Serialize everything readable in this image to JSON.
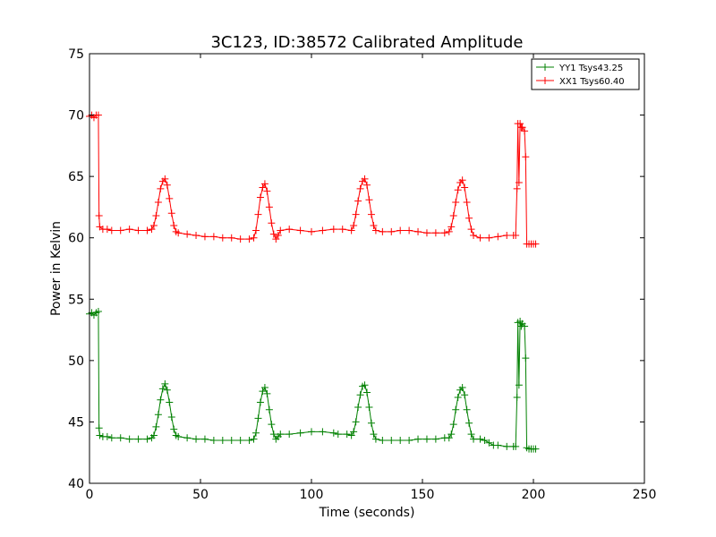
{
  "chart_data": {
    "type": "line",
    "title": "3C123, ID:38572 Calibrated Amplitude",
    "xlabel": "Time (seconds)",
    "ylabel": "Power in Kelvin",
    "xlim": [
      0,
      250
    ],
    "ylim": [
      40,
      75
    ],
    "xticks": [
      0,
      50,
      100,
      150,
      200,
      250
    ],
    "yticks": [
      40,
      45,
      50,
      55,
      60,
      65,
      70,
      75
    ],
    "xtick_labels": [
      "0",
      "50",
      "100",
      "150",
      "200",
      "250"
    ],
    "ytick_labels": [
      "40",
      "45",
      "50",
      "55",
      "60",
      "65",
      "70",
      "75"
    ],
    "grid": false,
    "legend_position": "top-right",
    "marker": "plus",
    "series": [
      {
        "name": "YY1 Tsys43.25",
        "color": "#008000",
        "points": [
          [
            0,
            53.8
          ],
          [
            1,
            53.9
          ],
          [
            2,
            53.7
          ],
          [
            3,
            53.9
          ],
          [
            4,
            54.0
          ],
          [
            4.3,
            44.5
          ],
          [
            4.6,
            43.9
          ],
          [
            6,
            43.8
          ],
          [
            8,
            43.8
          ],
          [
            10,
            43.7
          ],
          [
            14,
            43.7
          ],
          [
            18,
            43.6
          ],
          [
            22,
            43.6
          ],
          [
            26,
            43.6
          ],
          [
            28,
            43.7
          ],
          [
            29,
            43.9
          ],
          [
            30,
            44.6
          ],
          [
            31,
            45.6
          ],
          [
            32,
            46.8
          ],
          [
            33,
            47.7
          ],
          [
            34,
            48.1
          ],
          [
            35,
            47.6
          ],
          [
            36,
            46.6
          ],
          [
            37,
            45.4
          ],
          [
            38,
            44.4
          ],
          [
            39,
            43.9
          ],
          [
            40,
            43.8
          ],
          [
            44,
            43.7
          ],
          [
            48,
            43.6
          ],
          [
            52,
            43.6
          ],
          [
            56,
            43.5
          ],
          [
            60,
            43.5
          ],
          [
            64,
            43.5
          ],
          [
            68,
            43.5
          ],
          [
            72,
            43.5
          ],
          [
            74,
            43.6
          ],
          [
            75,
            44.1
          ],
          [
            76,
            45.3
          ],
          [
            77,
            46.6
          ],
          [
            78,
            47.5
          ],
          [
            79,
            47.8
          ],
          [
            80,
            47.3
          ],
          [
            81,
            46.0
          ],
          [
            82,
            44.8
          ],
          [
            83,
            44.0
          ],
          [
            84,
            43.6
          ],
          [
            85,
            43.8
          ],
          [
            86,
            44.0
          ],
          [
            90,
            44.0
          ],
          [
            95,
            44.1
          ],
          [
            100,
            44.2
          ],
          [
            105,
            44.2
          ],
          [
            110,
            44.1
          ],
          [
            112,
            44.0
          ],
          [
            116,
            44.0
          ],
          [
            118,
            43.9
          ],
          [
            119,
            44.2
          ],
          [
            120,
            45.0
          ],
          [
            121,
            46.2
          ],
          [
            122,
            47.2
          ],
          [
            123,
            47.9
          ],
          [
            124,
            48.0
          ],
          [
            125,
            47.4
          ],
          [
            126,
            46.2
          ],
          [
            127,
            44.9
          ],
          [
            128,
            44.0
          ],
          [
            129,
            43.6
          ],
          [
            132,
            43.5
          ],
          [
            136,
            43.5
          ],
          [
            140,
            43.5
          ],
          [
            144,
            43.5
          ],
          [
            148,
            43.6
          ],
          [
            152,
            43.6
          ],
          [
            156,
            43.6
          ],
          [
            160,
            43.7
          ],
          [
            162,
            43.7
          ],
          [
            163,
            44.0
          ],
          [
            164,
            44.8
          ],
          [
            165,
            46.0
          ],
          [
            166,
            47.0
          ],
          [
            167,
            47.6
          ],
          [
            168,
            47.8
          ],
          [
            169,
            47.2
          ],
          [
            170,
            46.0
          ],
          [
            171,
            44.9
          ],
          [
            172,
            44.0
          ],
          [
            173,
            43.6
          ],
          [
            176,
            43.6
          ],
          [
            178,
            43.5
          ],
          [
            180,
            43.3
          ],
          [
            182,
            43.1
          ],
          [
            184,
            43.1
          ],
          [
            188,
            43.0
          ],
          [
            191,
            43.0
          ],
          [
            192,
            43.0
          ],
          [
            192.6,
            47.0
          ],
          [
            193,
            53.1
          ],
          [
            193.5,
            48.0
          ],
          [
            194,
            53.2
          ],
          [
            194.5,
            52.8
          ],
          [
            195,
            53.0
          ],
          [
            196,
            52.8
          ],
          [
            196.5,
            50.2
          ],
          [
            197,
            42.9
          ],
          [
            198,
            42.8
          ],
          [
            199,
            42.8
          ],
          [
            200,
            42.8
          ],
          [
            201,
            42.8
          ]
        ]
      },
      {
        "name": "XX1 Tsys60.40",
        "color": "#ff0000",
        "points": [
          [
            0,
            69.9
          ],
          [
            1,
            70.0
          ],
          [
            2,
            69.8
          ],
          [
            3,
            70.0
          ],
          [
            4,
            70.0
          ],
          [
            4.3,
            61.8
          ],
          [
            4.6,
            60.9
          ],
          [
            6,
            60.7
          ],
          [
            8,
            60.7
          ],
          [
            10,
            60.6
          ],
          [
            14,
            60.6
          ],
          [
            18,
            60.7
          ],
          [
            22,
            60.6
          ],
          [
            26,
            60.6
          ],
          [
            28,
            60.7
          ],
          [
            29,
            61.0
          ],
          [
            30,
            61.8
          ],
          [
            31,
            62.9
          ],
          [
            32,
            64.0
          ],
          [
            33,
            64.6
          ],
          [
            34,
            64.8
          ],
          [
            35,
            64.3
          ],
          [
            36,
            63.2
          ],
          [
            37,
            62.0
          ],
          [
            38,
            61.0
          ],
          [
            39,
            60.5
          ],
          [
            40,
            60.4
          ],
          [
            44,
            60.3
          ],
          [
            48,
            60.2
          ],
          [
            52,
            60.1
          ],
          [
            56,
            60.1
          ],
          [
            60,
            60.0
          ],
          [
            64,
            60.0
          ],
          [
            68,
            59.9
          ],
          [
            72,
            59.9
          ],
          [
            74,
            60.0
          ],
          [
            75,
            60.6
          ],
          [
            76,
            61.9
          ],
          [
            77,
            63.3
          ],
          [
            78,
            64.1
          ],
          [
            79,
            64.4
          ],
          [
            80,
            63.8
          ],
          [
            81,
            62.5
          ],
          [
            82,
            61.2
          ],
          [
            83,
            60.3
          ],
          [
            84,
            59.9
          ],
          [
            85,
            60.2
          ],
          [
            86,
            60.6
          ],
          [
            90,
            60.7
          ],
          [
            95,
            60.6
          ],
          [
            100,
            60.5
          ],
          [
            105,
            60.6
          ],
          [
            110,
            60.7
          ],
          [
            114,
            60.7
          ],
          [
            118,
            60.6
          ],
          [
            119,
            61.0
          ],
          [
            120,
            61.9
          ],
          [
            121,
            63.0
          ],
          [
            122,
            64.0
          ],
          [
            123,
            64.6
          ],
          [
            124,
            64.8
          ],
          [
            125,
            64.3
          ],
          [
            126,
            63.1
          ],
          [
            127,
            61.9
          ],
          [
            128,
            61.0
          ],
          [
            129,
            60.6
          ],
          [
            132,
            60.5
          ],
          [
            136,
            60.5
          ],
          [
            140,
            60.6
          ],
          [
            144,
            60.6
          ],
          [
            148,
            60.5
          ],
          [
            152,
            60.4
          ],
          [
            156,
            60.4
          ],
          [
            160,
            60.4
          ],
          [
            162,
            60.5
          ],
          [
            163,
            60.9
          ],
          [
            164,
            61.8
          ],
          [
            165,
            62.9
          ],
          [
            166,
            63.9
          ],
          [
            167,
            64.5
          ],
          [
            168,
            64.7
          ],
          [
            169,
            64.1
          ],
          [
            170,
            62.9
          ],
          [
            171,
            61.6
          ],
          [
            172,
            60.7
          ],
          [
            173,
            60.2
          ],
          [
            176,
            60.0
          ],
          [
            180,
            60.0
          ],
          [
            184,
            60.1
          ],
          [
            188,
            60.2
          ],
          [
            191,
            60.2
          ],
          [
            192,
            60.2
          ],
          [
            192.6,
            64.0
          ],
          [
            193,
            69.3
          ],
          [
            193.5,
            64.5
          ],
          [
            194,
            69.3
          ],
          [
            194.5,
            69.0
          ],
          [
            195,
            69.0
          ],
          [
            196,
            68.7
          ],
          [
            196.5,
            66.6
          ],
          [
            197,
            59.5
          ],
          [
            198,
            59.5
          ],
          [
            199,
            59.5
          ],
          [
            200,
            59.5
          ],
          [
            201,
            59.5
          ]
        ]
      }
    ]
  }
}
